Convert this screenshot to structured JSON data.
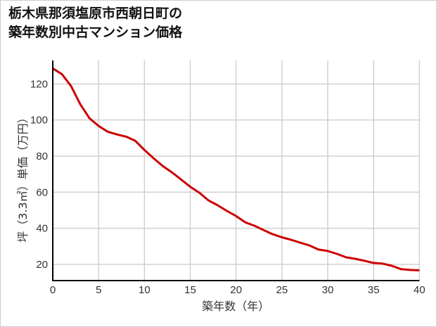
{
  "chart_data": {
    "type": "line",
    "title_line1": "栃木県那須塩原市西朝日町の",
    "title_line2": "築年数別中古マンション価格",
    "xlabel": "築年数（年）",
    "ylabel": "坪（3.3㎡）単価（万円）",
    "xlim": [
      0,
      40
    ],
    "ylim": [
      11,
      133
    ],
    "xticks": [
      0,
      5,
      10,
      15,
      20,
      25,
      30,
      35,
      40
    ],
    "yticks": [
      20,
      40,
      60,
      80,
      100,
      120
    ],
    "grid": true,
    "color": "#cc0000",
    "series": [
      {
        "name": "坪単価",
        "x": [
          0,
          1,
          2,
          3,
          4,
          5,
          6,
          7,
          8,
          9,
          10,
          11,
          12,
          13,
          14,
          15,
          16,
          17,
          18,
          19,
          20,
          21,
          22,
          23,
          24,
          25,
          26,
          27,
          28,
          29,
          30,
          31,
          32,
          33,
          34,
          35,
          36,
          37,
          38,
          39,
          40
        ],
        "values": [
          128.6,
          125.4,
          118.8,
          108.7,
          101,
          96.7,
          93.5,
          92,
          90.8,
          88.5,
          83.4,
          78.8,
          74.5,
          71,
          67,
          63,
          59.7,
          55.4,
          52.7,
          49.6,
          46.8,
          43.3,
          41.4,
          39,
          36.7,
          35,
          33.6,
          32,
          30.5,
          28.2,
          27.4,
          25.8,
          23.9,
          23.1,
          22,
          20.8,
          20.4,
          19.2,
          17.3,
          16.9,
          16.7
        ]
      }
    ]
  }
}
